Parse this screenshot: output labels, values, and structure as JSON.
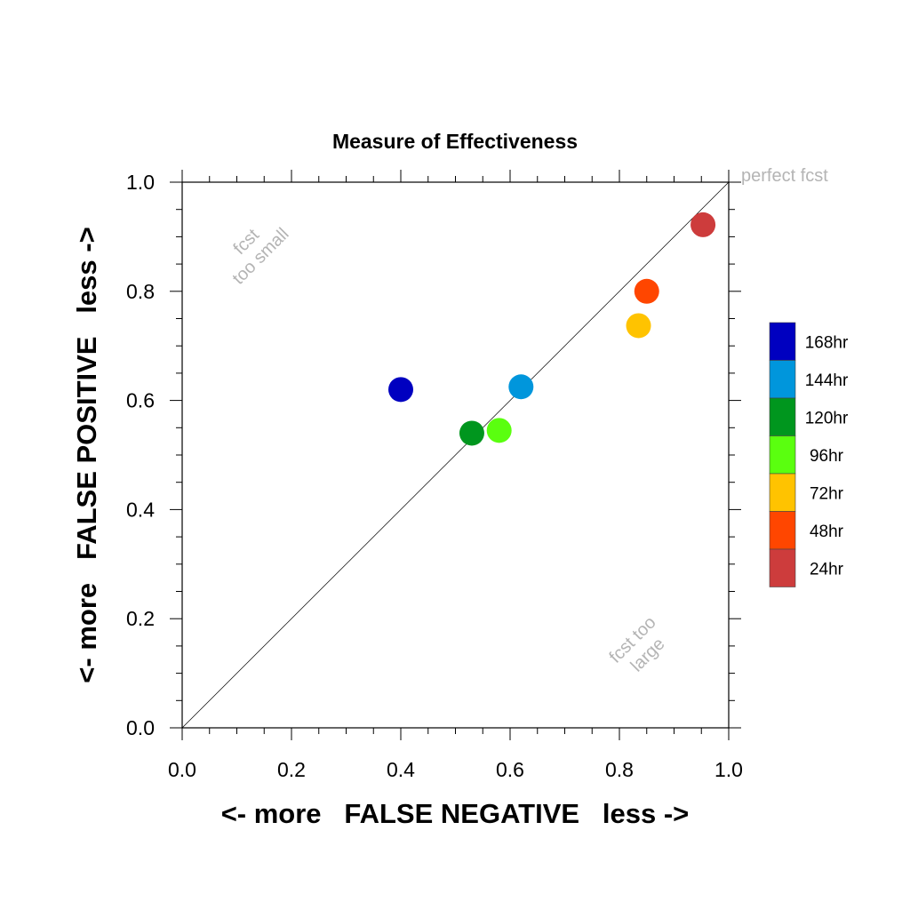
{
  "chart_data": {
    "type": "scatter",
    "title": "Measure of Effectiveness",
    "xlabel": "<- more   FALSE NEGATIVE   less ->",
    "ylabel": "<- more   FALSE POSITIVE   less ->",
    "xlim": [
      0.0,
      1.0
    ],
    "ylim": [
      0.0,
      1.0
    ],
    "x_ticks": [
      "0.0",
      "0.2",
      "0.4",
      "0.6",
      "0.8",
      "1.0"
    ],
    "y_ticks": [
      "0.0",
      "0.2",
      "0.4",
      "0.6",
      "0.8",
      "1.0"
    ],
    "grid": false,
    "reference_line": {
      "from": [
        0,
        0
      ],
      "to": [
        1,
        1
      ]
    },
    "annotations": {
      "perfect": "perfect fcst",
      "too_small_1": "fcst",
      "too_small_2": "too small",
      "too_large_1": "fcst too",
      "too_large_2": "large"
    },
    "legend_position": "right",
    "series": [
      {
        "name": "168hr",
        "color": "#0000c0",
        "x": 0.4,
        "y": 0.62
      },
      {
        "name": "144hr",
        "color": "#0096dc",
        "x": 0.62,
        "y": 0.625
      },
      {
        "name": "120hr",
        "color": "#00961e",
        "x": 0.53,
        "y": 0.54
      },
      {
        "name": "96hr",
        "color": "#5aff0f",
        "x": 0.58,
        "y": 0.545
      },
      {
        "name": "72hr",
        "color": "#ffc300",
        "x": 0.835,
        "y": 0.737
      },
      {
        "name": "48hr",
        "color": "#ff4600",
        "x": 0.85,
        "y": 0.8
      },
      {
        "name": "24hr",
        "color": "#cd3c3c",
        "x": 0.953,
        "y": 0.922
      }
    ]
  }
}
